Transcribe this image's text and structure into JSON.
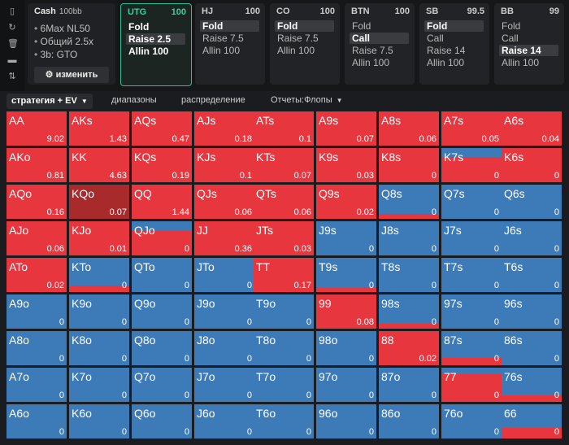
{
  "sidebar": {
    "icons": [
      "bookmark-icon",
      "refresh-icon",
      "trash-icon",
      "gamepad-icon",
      "sort-icon"
    ]
  },
  "cash": {
    "title": "Cash",
    "stake": "100bb",
    "lines": [
      "6Max NL50",
      "Общий 2.5x",
      "3b: GTO"
    ],
    "button": "изменить"
  },
  "positions": [
    {
      "name": "UTG",
      "stack": "100",
      "active": true,
      "actions": [
        {
          "label": "Fold",
          "sel": false
        },
        {
          "label": "Raise 2.5",
          "sel": true
        },
        {
          "label": "Allin 100",
          "sel": false
        }
      ]
    },
    {
      "name": "HJ",
      "stack": "100",
      "active": false,
      "actions": [
        {
          "label": "Fold",
          "sel": true
        },
        {
          "label": "Raise 7.5",
          "sel": false
        },
        {
          "label": "Allin 100",
          "sel": false
        }
      ]
    },
    {
      "name": "CO",
      "stack": "100",
      "active": false,
      "actions": [
        {
          "label": "Fold",
          "sel": true
        },
        {
          "label": "Raise 7.5",
          "sel": false
        },
        {
          "label": "Allin 100",
          "sel": false
        }
      ]
    },
    {
      "name": "BTN",
      "stack": "100",
      "active": false,
      "actions": [
        {
          "label": "Fold",
          "sel": false
        },
        {
          "label": "Call",
          "sel": true
        },
        {
          "label": "Raise 7.5",
          "sel": false
        },
        {
          "label": "Allin 100",
          "sel": false
        }
      ]
    },
    {
      "name": "SB",
      "stack": "99.5",
      "active": false,
      "actions": [
        {
          "label": "Fold",
          "sel": true
        },
        {
          "label": "Call",
          "sel": false
        },
        {
          "label": "Raise 14",
          "sel": false
        },
        {
          "label": "Allin 100",
          "sel": false
        }
      ]
    },
    {
      "name": "BB",
      "stack": "99",
      "active": false,
      "actions": [
        {
          "label": "Fold",
          "sel": false
        },
        {
          "label": "Call",
          "sel": false
        },
        {
          "label": "Raise 14",
          "sel": true
        },
        {
          "label": "Allin 100",
          "sel": false
        }
      ]
    }
  ],
  "tabs": [
    "стратегия + EV",
    "диапазоны",
    "распределение",
    "Отчеты:Флопы"
  ],
  "colors": {
    "raise": "#e8363f",
    "fold": "#3d7ab8",
    "highlight": "#a82a2b"
  },
  "grid": [
    [
      {
        "h": "AA",
        "ev": "9.02",
        "r": 1
      },
      {
        "h": "AKs",
        "ev": "1.43",
        "r": 1
      },
      {
        "h": "AQs",
        "ev": "0.47",
        "r": 1
      },
      {
        "h": "AJs",
        "ev": "0.18",
        "r": 1
      },
      {
        "h": "ATs",
        "ev": "0.1",
        "r": 1
      },
      {
        "h": "A9s",
        "ev": "0.07",
        "r": 1
      },
      {
        "h": "A8s",
        "ev": "0.06",
        "r": 1
      },
      {
        "h": "A7s",
        "ev": "0.05",
        "r": 1
      },
      {
        "h": "A6s",
        "ev": "0.04",
        "r": 1
      }
    ],
    [
      {
        "h": "AKo",
        "ev": "0.81",
        "r": 1
      },
      {
        "h": "KK",
        "ev": "4.63",
        "r": 1
      },
      {
        "h": "KQs",
        "ev": "0.19",
        "r": 1
      },
      {
        "h": "KJs",
        "ev": "0.1",
        "r": 1
      },
      {
        "h": "KTs",
        "ev": "0.07",
        "r": 1
      },
      {
        "h": "K9s",
        "ev": "0.03",
        "r": 1
      },
      {
        "h": "K8s",
        "ev": "0",
        "r": 1
      },
      {
        "h": "K7s",
        "ev": "0",
        "r": 0.75,
        "top": "fold"
      },
      {
        "h": "K6s",
        "ev": "0",
        "r": 1
      }
    ],
    [
      {
        "h": "AQo",
        "ev": "0.16",
        "r": 1
      },
      {
        "h": "KQo",
        "ev": "0.07",
        "r": 1,
        "hl": true
      },
      {
        "h": "QQ",
        "ev": "1.44",
        "r": 1
      },
      {
        "h": "QJs",
        "ev": "0.06",
        "r": 1
      },
      {
        "h": "QTs",
        "ev": "0.06",
        "r": 1
      },
      {
        "h": "Q9s",
        "ev": "0.02",
        "r": 1
      },
      {
        "h": "Q8s",
        "ev": "0",
        "r": 0.15
      },
      {
        "h": "Q7s",
        "ev": "0",
        "r": 0
      },
      {
        "h": "Q6s",
        "ev": "0",
        "r": 0
      }
    ],
    [
      {
        "h": "AJo",
        "ev": "0.06",
        "r": 1
      },
      {
        "h": "KJo",
        "ev": "0.01",
        "r": 1
      },
      {
        "h": "QJo",
        "ev": "0",
        "r": 0.72,
        "top": "fold"
      },
      {
        "h": "JJ",
        "ev": "0.36",
        "r": 1
      },
      {
        "h": "JTs",
        "ev": "0.03",
        "r": 1
      },
      {
        "h": "J9s",
        "ev": "0",
        "r": 0
      },
      {
        "h": "J8s",
        "ev": "0",
        "r": 0
      },
      {
        "h": "J7s",
        "ev": "0",
        "r": 0
      },
      {
        "h": "J6s",
        "ev": "0",
        "r": 0
      }
    ],
    [
      {
        "h": "ATo",
        "ev": "0.02",
        "r": 1
      },
      {
        "h": "KTo",
        "ev": "0",
        "r": 0.2
      },
      {
        "h": "QTo",
        "ev": "0",
        "r": 0
      },
      {
        "h": "JTo",
        "ev": "0",
        "r": 0
      },
      {
        "h": "TT",
        "ev": "0.17",
        "r": 1
      },
      {
        "h": "T9s",
        "ev": "0",
        "r": 0.15
      },
      {
        "h": "T8s",
        "ev": "0",
        "r": 0
      },
      {
        "h": "T7s",
        "ev": "0",
        "r": 0
      },
      {
        "h": "T6s",
        "ev": "0",
        "r": 0
      }
    ],
    [
      {
        "h": "A9o",
        "ev": "0",
        "r": 0
      },
      {
        "h": "K9o",
        "ev": "0",
        "r": 0
      },
      {
        "h": "Q9o",
        "ev": "0",
        "r": 0
      },
      {
        "h": "J9o",
        "ev": "0",
        "r": 0
      },
      {
        "h": "T9o",
        "ev": "0",
        "r": 0
      },
      {
        "h": "99",
        "ev": "0.08",
        "r": 1
      },
      {
        "h": "98s",
        "ev": "0",
        "r": 0.15
      },
      {
        "h": "97s",
        "ev": "0",
        "r": 0
      },
      {
        "h": "96s",
        "ev": "0",
        "r": 0
      }
    ],
    [
      {
        "h": "A8o",
        "ev": "0",
        "r": 0
      },
      {
        "h": "K8o",
        "ev": "0",
        "r": 0
      },
      {
        "h": "Q8o",
        "ev": "0",
        "r": 0
      },
      {
        "h": "J8o",
        "ev": "0",
        "r": 0
      },
      {
        "h": "T8o",
        "ev": "0",
        "r": 0
      },
      {
        "h": "98o",
        "ev": "0",
        "r": 0
      },
      {
        "h": "88",
        "ev": "0.02",
        "r": 1
      },
      {
        "h": "87s",
        "ev": "0",
        "r": 0.22
      },
      {
        "h": "86s",
        "ev": "0",
        "r": 0
      }
    ],
    [
      {
        "h": "A7o",
        "ev": "0",
        "r": 0
      },
      {
        "h": "K7o",
        "ev": "0",
        "r": 0
      },
      {
        "h": "Q7o",
        "ev": "0",
        "r": 0
      },
      {
        "h": "J7o",
        "ev": "0",
        "r": 0
      },
      {
        "h": "T7o",
        "ev": "0",
        "r": 0
      },
      {
        "h": "97o",
        "ev": "0",
        "r": 0
      },
      {
        "h": "87o",
        "ev": "0",
        "r": 0
      },
      {
        "h": "77",
        "ev": "0",
        "r": 0.82,
        "top": "fold"
      },
      {
        "h": "76s",
        "ev": "0",
        "r": 0.18
      }
    ],
    [
      {
        "h": "A6o",
        "ev": "0",
        "r": 0
      },
      {
        "h": "K6o",
        "ev": "0",
        "r": 0
      },
      {
        "h": "Q6o",
        "ev": "0",
        "r": 0
      },
      {
        "h": "J6o",
        "ev": "0",
        "r": 0
      },
      {
        "h": "T6o",
        "ev": "0",
        "r": 0
      },
      {
        "h": "96o",
        "ev": "0",
        "r": 0
      },
      {
        "h": "86o",
        "ev": "0",
        "r": 0
      },
      {
        "h": "76o",
        "ev": "0",
        "r": 0
      },
      {
        "h": "66",
        "ev": "0",
        "r": 0.3
      }
    ]
  ]
}
